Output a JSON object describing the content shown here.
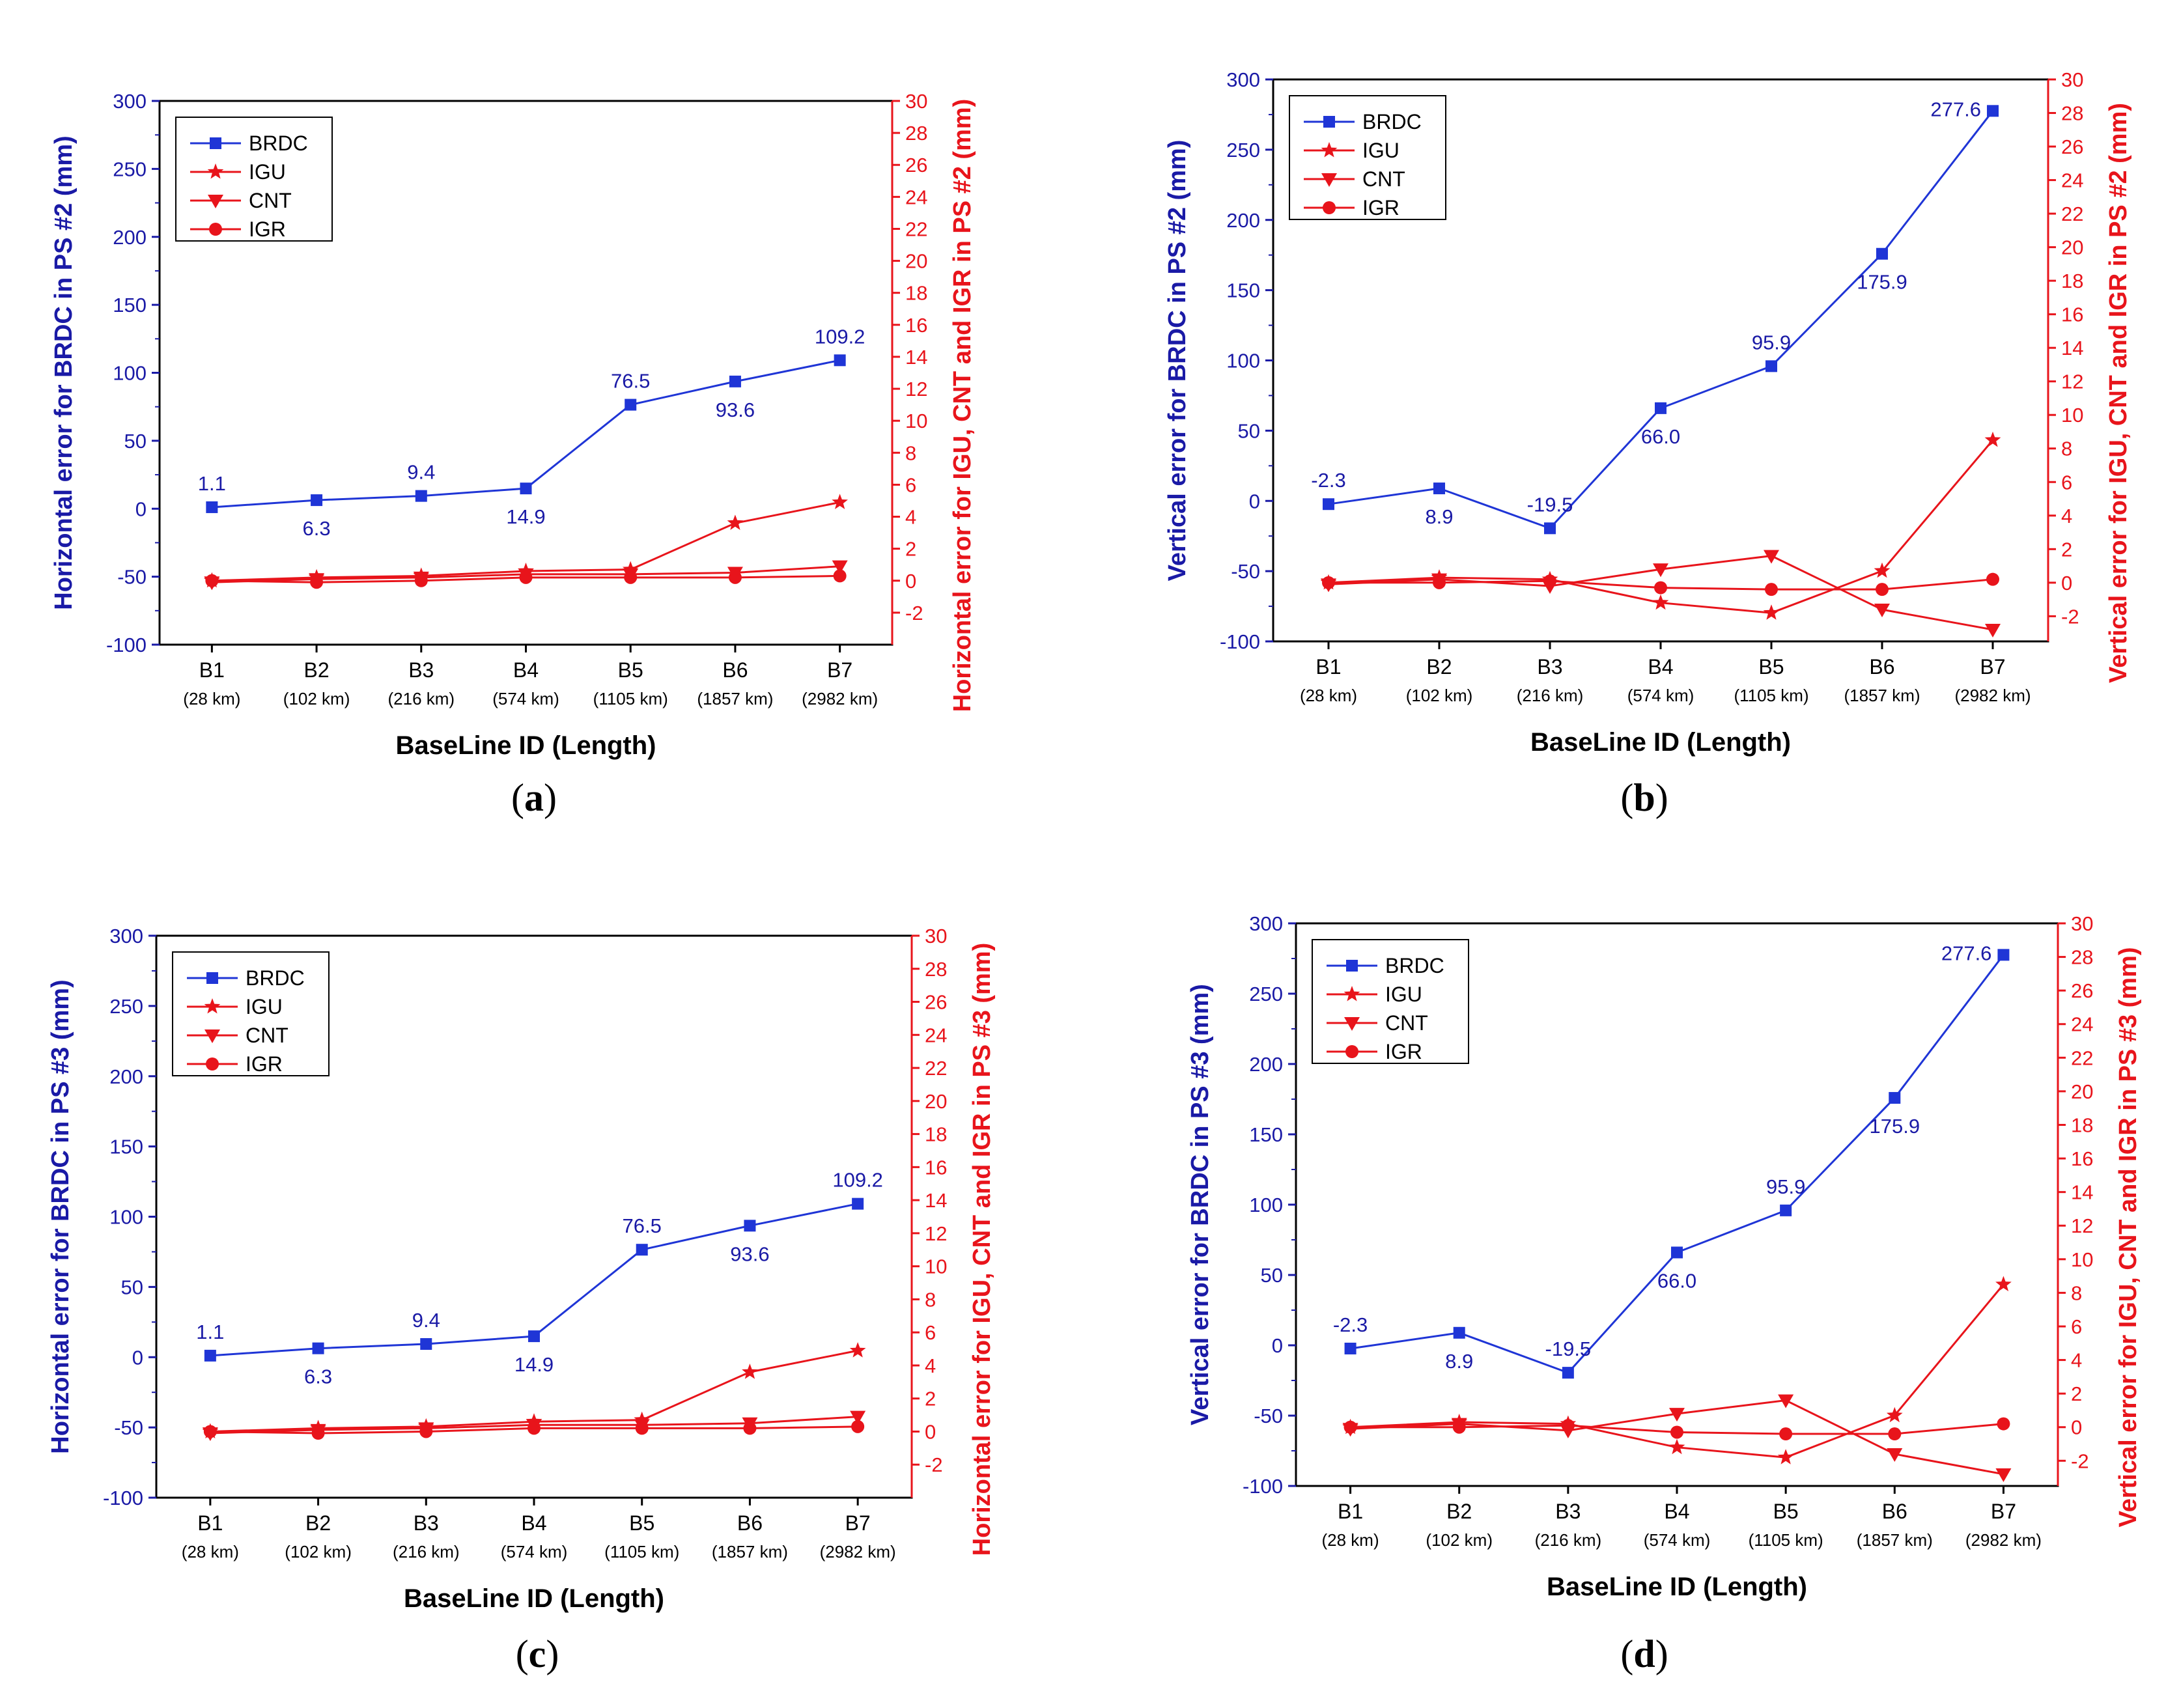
{
  "colors": {
    "left_axis": "#1a1aa6",
    "right_axis": "#e8141b",
    "brdc": "#1f35d6",
    "red_series": "#e8141b"
  },
  "chart_data": [
    {
      "type": "line",
      "panel_label": "a",
      "xlabel": "BaseLine ID (Length)",
      "ylabel_left": "Horizontal error for BRDC in PS #2 (mm)",
      "ylabel_right": "Horizontal error for IGU, CNT and IGR in PS #2 (mm)",
      "categories": [
        "B1",
        "B2",
        "B3",
        "B4",
        "B5",
        "B6",
        "B7"
      ],
      "category_sub": [
        "(28 km)",
        "(102 km)",
        "(216 km)",
        "(574 km)",
        "(1105 km)",
        "(1857 km)",
        "(2982 km)"
      ],
      "ylim_left": [
        -100,
        300
      ],
      "ylim_right": [
        -4,
        30
      ],
      "yticks_left": [
        "-100",
        "-50",
        "0",
        "50",
        "100",
        "150",
        "200",
        "250",
        "300"
      ],
      "yticks_right": [
        "-2",
        "0",
        "2",
        "4",
        "6",
        "8",
        "10",
        "12",
        "14",
        "16",
        "18",
        "20",
        "22",
        "24",
        "26",
        "28",
        "30"
      ],
      "legend_position": "top-left",
      "series": [
        {
          "name": "BRDC",
          "axis": "left",
          "marker": "square",
          "values": [
            1.1,
            6.3,
            9.4,
            14.9,
            76.5,
            93.6,
            109.2
          ],
          "labels": [
            "1.1",
            "6.3",
            "9.4",
            "14.9",
            "76.5",
            "93.6",
            "109.2"
          ]
        },
        {
          "name": "IGU",
          "axis": "right",
          "marker": "star",
          "values": [
            0.0,
            0.2,
            0.3,
            0.6,
            0.7,
            3.6,
            4.9
          ]
        },
        {
          "name": "CNT",
          "axis": "right",
          "marker": "triangle-down",
          "values": [
            -0.1,
            0.1,
            0.2,
            0.4,
            0.4,
            0.5,
            0.9
          ]
        },
        {
          "name": "IGR",
          "axis": "right",
          "marker": "circle",
          "values": [
            0.0,
            -0.1,
            0.0,
            0.2,
            0.2,
            0.2,
            0.3
          ]
        }
      ]
    },
    {
      "type": "line",
      "panel_label": "b",
      "xlabel": "BaseLine ID (Length)",
      "ylabel_left": "Vertical error for BRDC in PS #2 (mm)",
      "ylabel_right": "Vertical error for IGU, CNT and IGR in PS #2 (mm)",
      "categories": [
        "B1",
        "B2",
        "B3",
        "B4",
        "B5",
        "B6",
        "B7"
      ],
      "category_sub": [
        "(28 km)",
        "(102 km)",
        "(216 km)",
        "(574 km)",
        "(1105 km)",
        "(1857 km)",
        "(2982 km)"
      ],
      "ylim_left": [
        -100,
        300
      ],
      "ylim_right": [
        -3.5,
        30
      ],
      "yticks_left": [
        "-100",
        "-50",
        "0",
        "50",
        "100",
        "150",
        "200",
        "250",
        "300"
      ],
      "yticks_right": [
        "-2",
        "0",
        "2",
        "4",
        "6",
        "8",
        "10",
        "12",
        "14",
        "16",
        "18",
        "20",
        "22",
        "24",
        "26",
        "28",
        "30"
      ],
      "legend_position": "top-left",
      "series": [
        {
          "name": "BRDC",
          "axis": "left",
          "marker": "square",
          "values": [
            -2.3,
            8.9,
            -19.5,
            66.0,
            95.9,
            175.9,
            277.6
          ],
          "labels": [
            "-2.3",
            "8.9",
            "-19.5",
            "66.0",
            "95.9",
            "175.9",
            "277.6"
          ]
        },
        {
          "name": "IGU",
          "axis": "right",
          "marker": "star",
          "values": [
            0.0,
            0.3,
            0.2,
            -1.2,
            -1.8,
            0.7,
            8.5
          ]
        },
        {
          "name": "CNT",
          "axis": "right",
          "marker": "triangle-down",
          "values": [
            -0.1,
            0.2,
            -0.2,
            0.8,
            1.6,
            -1.6,
            -2.8
          ]
        },
        {
          "name": "IGR",
          "axis": "right",
          "marker": "circle",
          "values": [
            0.0,
            0.0,
            0.1,
            -0.3,
            -0.4,
            -0.4,
            0.2
          ]
        }
      ]
    },
    {
      "type": "line",
      "panel_label": "c",
      "xlabel": "BaseLine ID (Length)",
      "ylabel_left": "Horizontal error for BRDC in PS #3 (mm)",
      "ylabel_right": "Horizontal error for IGU, CNT and IGR in PS #3 (mm)",
      "categories": [
        "B1",
        "B2",
        "B3",
        "B4",
        "B5",
        "B6",
        "B7"
      ],
      "category_sub": [
        "(28 km)",
        "(102 km)",
        "(216 km)",
        "(574 km)",
        "(1105 km)",
        "(1857 km)",
        "(2982 km)"
      ],
      "ylim_left": [
        -100,
        300
      ],
      "ylim_right": [
        -4,
        30
      ],
      "yticks_left": [
        "-100",
        "-50",
        "0",
        "50",
        "100",
        "150",
        "200",
        "250",
        "300"
      ],
      "yticks_right": [
        "-2",
        "0",
        "2",
        "4",
        "6",
        "8",
        "10",
        "12",
        "14",
        "16",
        "18",
        "20",
        "22",
        "24",
        "26",
        "28",
        "30"
      ],
      "legend_position": "top-left",
      "series": [
        {
          "name": "BRDC",
          "axis": "left",
          "marker": "square",
          "values": [
            1.1,
            6.3,
            9.4,
            14.9,
            76.5,
            93.6,
            109.2
          ],
          "labels": [
            "1.1",
            "6.3",
            "9.4",
            "14.9",
            "76.5",
            "93.6",
            "109.2"
          ]
        },
        {
          "name": "IGU",
          "axis": "right",
          "marker": "star",
          "values": [
            0.0,
            0.2,
            0.3,
            0.6,
            0.7,
            3.6,
            4.9
          ]
        },
        {
          "name": "CNT",
          "axis": "right",
          "marker": "triangle-down",
          "values": [
            -0.1,
            0.1,
            0.2,
            0.4,
            0.4,
            0.5,
            0.9
          ]
        },
        {
          "name": "IGR",
          "axis": "right",
          "marker": "circle",
          "values": [
            0.0,
            -0.1,
            0.0,
            0.2,
            0.2,
            0.2,
            0.3
          ]
        }
      ]
    },
    {
      "type": "line",
      "panel_label": "d",
      "xlabel": "BaseLine ID (Length)",
      "ylabel_left": "Vertical error for BRDC in PS #3 (mm)",
      "ylabel_right": "Vertical error for IGU, CNT and IGR in PS #3 (mm)",
      "categories": [
        "B1",
        "B2",
        "B3",
        "B4",
        "B5",
        "B6",
        "B7"
      ],
      "category_sub": [
        "(28 km)",
        "(102 km)",
        "(216 km)",
        "(574 km)",
        "(1105 km)",
        "(1857 km)",
        "(2982 km)"
      ],
      "ylim_left": [
        -100,
        300
      ],
      "ylim_right": [
        -3.5,
        30
      ],
      "yticks_left": [
        "-100",
        "-50",
        "0",
        "50",
        "100",
        "150",
        "200",
        "250",
        "300"
      ],
      "yticks_right": [
        "-2",
        "0",
        "2",
        "4",
        "6",
        "8",
        "10",
        "12",
        "14",
        "16",
        "18",
        "20",
        "22",
        "24",
        "26",
        "28",
        "30"
      ],
      "legend_position": "top-left",
      "series": [
        {
          "name": "BRDC",
          "axis": "left",
          "marker": "square",
          "values": [
            -2.3,
            8.9,
            -19.5,
            66.0,
            95.9,
            175.9,
            277.6
          ],
          "labels": [
            "-2.3",
            "8.9",
            "-19.5",
            "66.0",
            "95.9",
            "175.9",
            "277.6"
          ]
        },
        {
          "name": "IGU",
          "axis": "right",
          "marker": "star",
          "values": [
            0.0,
            0.3,
            0.2,
            -1.2,
            -1.8,
            0.7,
            8.5
          ]
        },
        {
          "name": "CNT",
          "axis": "right",
          "marker": "triangle-down",
          "values": [
            -0.1,
            0.2,
            -0.2,
            0.8,
            1.6,
            -1.6,
            -2.8
          ]
        },
        {
          "name": "IGR",
          "axis": "right",
          "marker": "circle",
          "values": [
            0.0,
            0.0,
            0.1,
            -0.3,
            -0.4,
            -0.4,
            0.2
          ]
        }
      ]
    }
  ]
}
